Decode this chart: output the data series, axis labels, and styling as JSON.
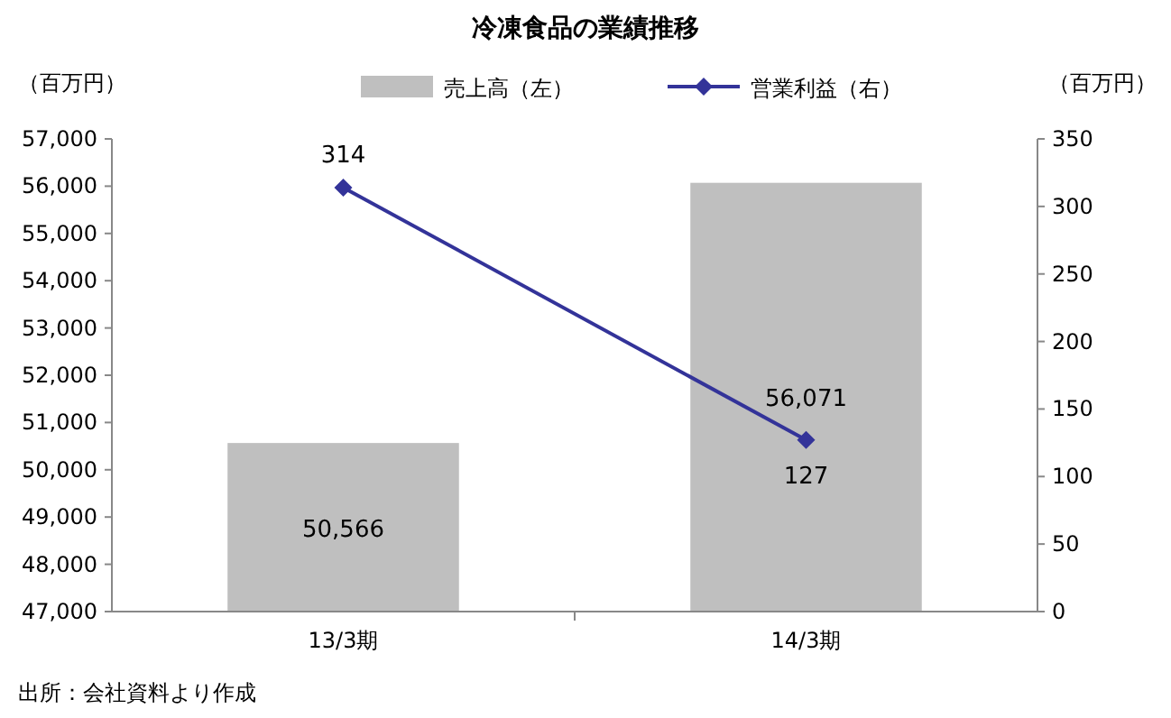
{
  "chart_data": {
    "type": "bar",
    "title": "冷凍食品の業績推移",
    "ylabel": "（百万円）",
    "y2label": "（百万円）",
    "categories": [
      "13/3期",
      "14/3期"
    ],
    "series": [
      {
        "name": "売上高（左）",
        "color": "#bfbfbf",
        "values": [
          50566,
          56071
        ],
        "value_labels": [
          "50,566",
          "56,071"
        ]
      },
      {
        "name": "営業利益（右）",
        "type": "line",
        "axis": "y2",
        "color": "#333399",
        "values": [
          314,
          127
        ]
      }
    ],
    "ylim": [
      47000,
      57000
    ],
    "yticks": [
      {
        "value": 47000,
        "label": "47,000"
      },
      {
        "value": 48000,
        "label": "48,000"
      },
      {
        "value": 49000,
        "label": "49,000"
      },
      {
        "value": 50000,
        "label": "50,000"
      },
      {
        "value": 51000,
        "label": "51,000"
      },
      {
        "value": 52000,
        "label": "52,000"
      },
      {
        "value": 53000,
        "label": "53,000"
      },
      {
        "value": 54000,
        "label": "54,000"
      },
      {
        "value": 55000,
        "label": "55,000"
      },
      {
        "value": 56000,
        "label": "56,000"
      },
      {
        "value": 57000,
        "label": "57,000"
      }
    ],
    "y2lim": [
      0,
      350
    ],
    "y2ticks": [
      0,
      50,
      100,
      150,
      200,
      250,
      300,
      350
    ],
    "data_labels": true,
    "legend": "top",
    "grid": false,
    "marker": "diamond",
    "line_style": "solid",
    "annotations": [
      "出所：会社資料より作成"
    ]
  }
}
